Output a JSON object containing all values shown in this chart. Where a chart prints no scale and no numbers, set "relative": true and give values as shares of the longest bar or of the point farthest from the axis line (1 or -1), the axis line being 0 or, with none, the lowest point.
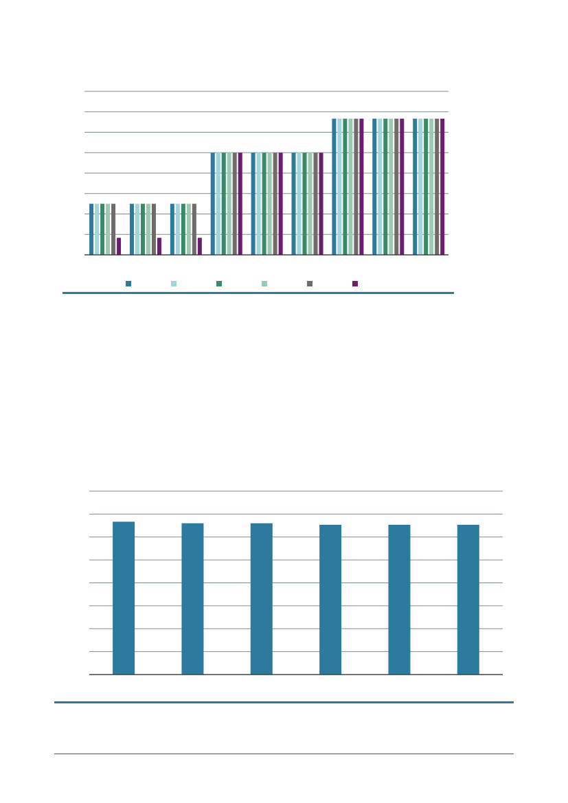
{
  "chart_data": [
    {
      "type": "bar",
      "relative": true,
      "categories": [
        null,
        null,
        null,
        null,
        null,
        null,
        null,
        null,
        null
      ],
      "series": [
        {
          "color": "#2e7a9e",
          "values": [
            0.375,
            0.375,
            0.375,
            0.75,
            0.75,
            0.75,
            1,
            1,
            1
          ]
        },
        {
          "color": "#a1d4dc",
          "values": [
            0.375,
            0.375,
            0.375,
            0.75,
            0.75,
            0.75,
            1,
            1,
            1
          ]
        },
        {
          "color": "#3a8a6a",
          "values": [
            0.375,
            0.375,
            0.375,
            0.75,
            0.75,
            0.75,
            1,
            1,
            1
          ]
        },
        {
          "color": "#9dc9b2",
          "values": [
            0.375,
            0.375,
            0.375,
            0.75,
            0.75,
            0.75,
            1,
            1,
            1
          ]
        },
        {
          "color": "#706b6a",
          "values": [
            0.375,
            0.375,
            0.375,
            0.75,
            0.75,
            0.75,
            1,
            1,
            1
          ]
        },
        {
          "color": "#6a1f6e",
          "values": [
            0.125,
            0.125,
            0.125,
            0.75,
            0.75,
            0.75,
            1,
            1,
            1
          ]
        }
      ],
      "grid": "y"
    },
    {
      "type": "bar",
      "relative": true,
      "categories": [
        null,
        null,
        null,
        null,
        null,
        null
      ],
      "series": [
        {
          "color": "#2e7a9e",
          "values": [
            1,
            0.99,
            0.99,
            0.98,
            0.98,
            0.98
          ]
        }
      ],
      "grid": "y"
    }
  ]
}
